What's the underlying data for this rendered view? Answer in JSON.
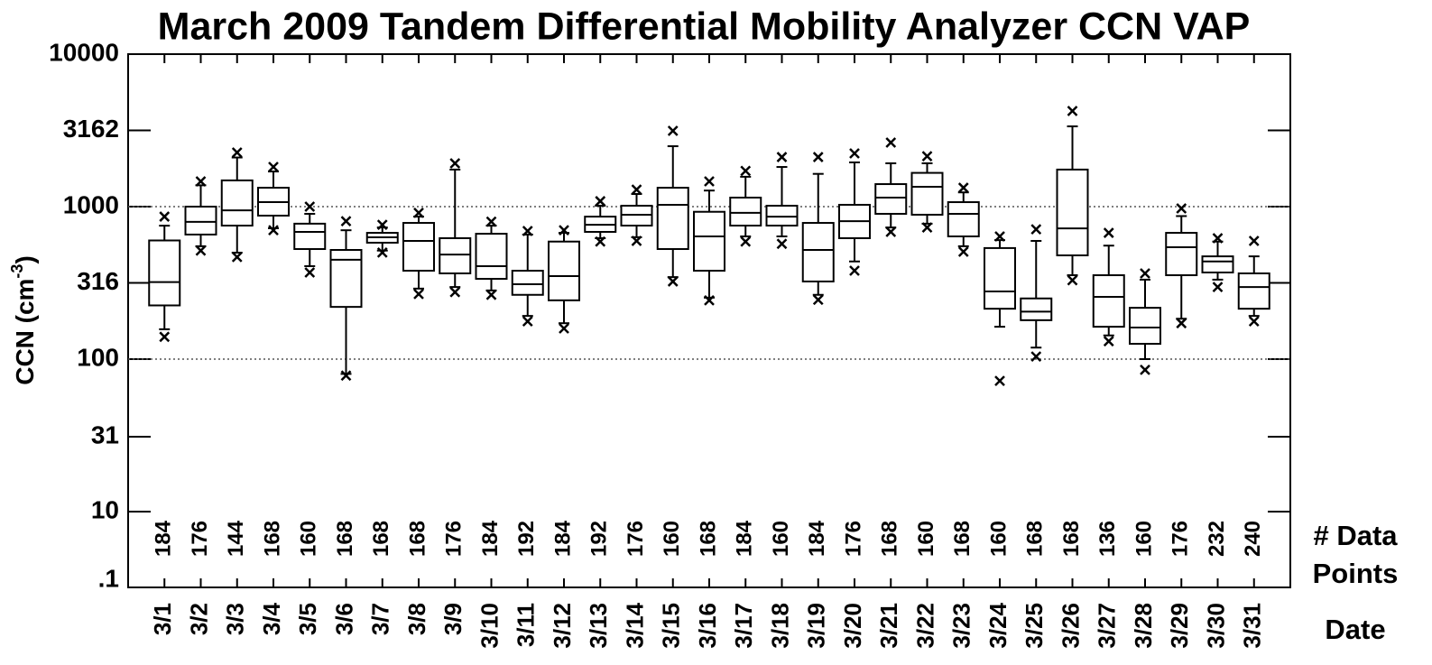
{
  "chart_data": {
    "type": "box",
    "title": "March 2009  Tandem Differential Mobility Analyzer CCN VAP",
    "y_label": {
      "text": "CCN (cm",
      "superscript": "-3",
      "suffix": ")"
    },
    "x_label": "Date",
    "counts_label": [
      "# Data",
      "Points"
    ],
    "count_band_label": ".1",
    "log_y": true,
    "color": "#000000",
    "ylim": [
      10,
      10000
    ],
    "yticks": [
      10,
      31,
      100,
      316,
      1000,
      3162,
      10000
    ],
    "grid_lines": [
      100,
      1000
    ],
    "categories": [
      "3/1",
      "3/2",
      "3/3",
      "3/4",
      "3/5",
      "3/6",
      "3/7",
      "3/8",
      "3/9",
      "3/10",
      "3/11",
      "3/12",
      "3/13",
      "3/14",
      "3/15",
      "3/16",
      "3/17",
      "3/18",
      "3/19",
      "3/20",
      "3/21",
      "3/22",
      "3/23",
      "3/24",
      "3/25",
      "3/26",
      "3/27",
      "3/28",
      "3/29",
      "3/30",
      "3/31"
    ],
    "max": [
      860,
      1465,
      2265,
      1820,
      1000,
      803,
      760,
      910,
      1924,
      797,
      692,
      700,
      1086,
      1294,
      3140,
      1465,
      1715,
      2114,
      2114,
      2235,
      2630,
      2140,
      1330,
      638,
      710,
      4240,
      673,
      365,
      973,
      621,
      596
    ],
    "whisker_high": [
      750,
      1380,
      2100,
      1700,
      897,
      700,
      730,
      860,
      1750,
      750,
      656,
      673,
      1014,
      1210,
      2490,
      1275,
      1570,
      1820,
      1640,
      1950,
      1924,
      1924,
      1240,
      603,
      596,
      3360,
      555,
      332,
      867,
      590,
      472
    ],
    "q3": [
      600,
      1000,
      1486,
      1330,
      773,
      520,
      673,
      782,
      621,
      664,
      380,
      590,
      860,
      1014,
      1330,
      925,
      1146,
      1014,
      782,
      1028,
      1405,
      1665,
      1070,
      535,
      250,
      1750,
      355,
      217,
      673,
      472,
      365
    ],
    "median": [
      320,
      794,
      946,
      1070,
      683,
      448,
      629,
      596,
      485,
      407,
      310,
      350,
      760,
      885,
      1028,
      638,
      910,
      860,
      520,
      803,
      1146,
      1350,
      897,
      278,
      205,
      720,
      256,
      161,
      542,
      437,
      297
    ],
    "q1": [
      225,
      656,
      751,
      873,
      527,
      220,
      580,
      380,
      365,
      336,
      264,
      243,
      683,
      751,
      527,
      380,
      751,
      751,
      323,
      621,
      897,
      885,
      638,
      214,
      180,
      479,
      163,
      126,
      355,
      370,
      214
    ],
    "whisker_low": [
      157,
      550,
      499,
      721,
      407,
      80,
      515,
      290,
      297,
      282,
      192,
      172,
      621,
      630,
      345,
      253,
      638,
      638,
      264,
      437,
      730,
      773,
      550,
      163,
      119,
      355,
      143,
      100,
      184,
      332,
      192
    ],
    "min": [
      140,
      515,
      467,
      700,
      370,
      78,
      500,
      267,
      275,
      264,
      177,
      159,
      590,
      596,
      323,
      243,
      590,
      570,
      245,
      380,
      683,
      730,
      506,
      72,
      104,
      329,
      131,
      85,
      172,
      297,
      177
    ],
    "counts": [
      "184",
      "176",
      "144",
      "168",
      "160",
      "168",
      "168",
      "168",
      "176",
      "184",
      "192",
      "184",
      "192",
      "176",
      "160",
      "168",
      "184",
      "160",
      "184",
      "176",
      "168",
      "160",
      "168",
      "160",
      "168",
      "168",
      "136",
      "160",
      "176",
      "232",
      "240"
    ]
  }
}
